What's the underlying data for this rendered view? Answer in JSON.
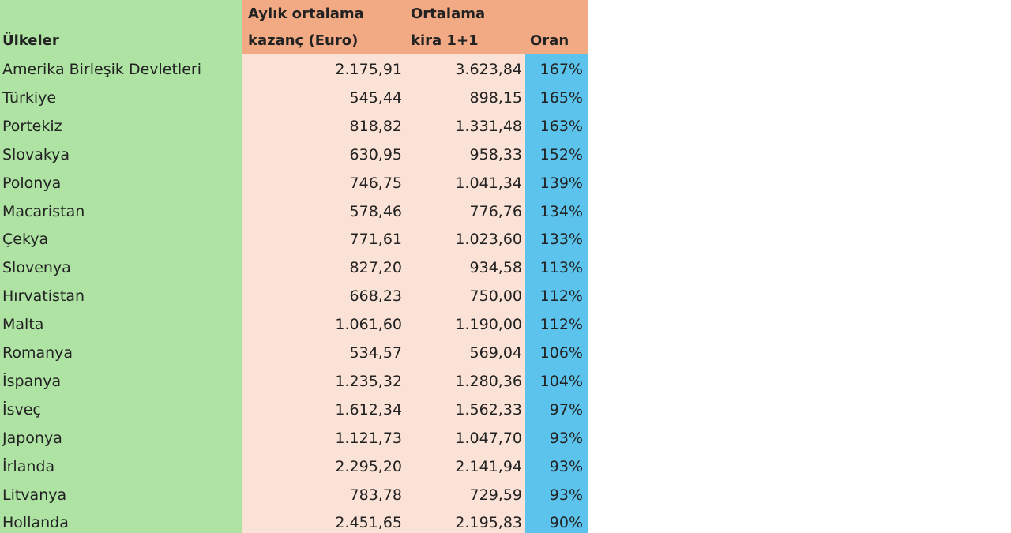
{
  "table": {
    "header": [
      [
        "Ülkeler"
      ],
      [
        "Aylık ortalama",
        "kazanç (Euro)"
      ],
      [
        "Ortalama",
        "kira 1+1"
      ],
      [
        "Oran"
      ]
    ],
    "rows": [
      [
        "Amerika Birleşik Devletleri",
        "2.175,91",
        "3.623,84",
        "167%"
      ],
      [
        "Türkiye",
        "545,44",
        "898,15",
        "165%"
      ],
      [
        "Portekiz",
        "818,82",
        "1.331,48",
        "163%"
      ],
      [
        "Slovakya",
        "630,95",
        "958,33",
        "152%"
      ],
      [
        "Polonya",
        "746,75",
        "1.041,34",
        "139%"
      ],
      [
        "Macaristan",
        "578,46",
        "776,76",
        "134%"
      ],
      [
        "Çekya",
        "771,61",
        "1.023,60",
        "133%"
      ],
      [
        "Slovenya",
        "827,20",
        "934,58",
        "113%"
      ],
      [
        "Hırvatistan",
        "668,23",
        "750,00",
        "112%"
      ],
      [
        "Malta",
        "1.061,60",
        "1.190,00",
        "112%"
      ],
      [
        "Romanya",
        "534,57",
        "569,04",
        "106%"
      ],
      [
        "İspanya",
        "1.235,32",
        "1.280,36",
        "104%"
      ],
      [
        "İsveç",
        "1.612,34",
        "1.562,33",
        "97%"
      ],
      [
        "Japonya",
        "1.121,73",
        "1.047,70",
        "93%"
      ],
      [
        "İrlanda",
        "2.295,20",
        "2.141,94",
        "93%"
      ],
      [
        "Litvanya",
        "783,78",
        "729,59",
        "93%"
      ],
      [
        "Hollanda",
        "2.451,65",
        "2.195,83",
        "90%"
      ]
    ]
  }
}
